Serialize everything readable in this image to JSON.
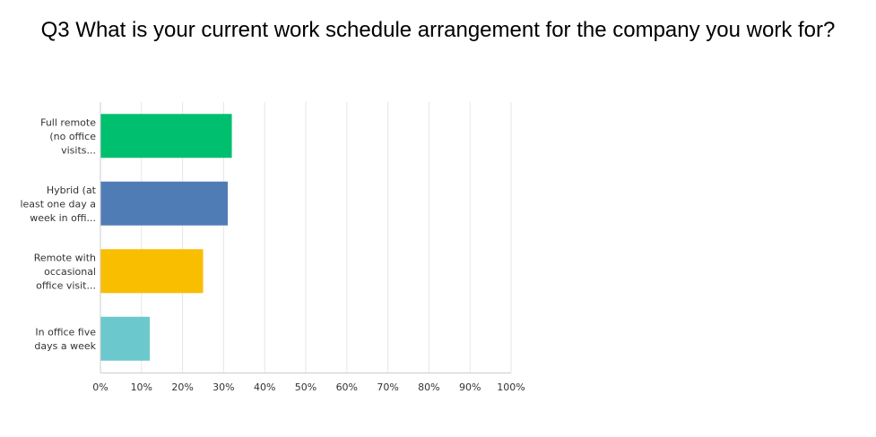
{
  "chart_data": {
    "type": "bar",
    "orientation": "horizontal",
    "title": "Q3 What is your current work schedule arrangement for the company you work for?",
    "categories": [
      [
        "Full remote",
        "(no office",
        "visits..."
      ],
      [
        "Hybrid (at",
        "least one day a",
        "week in offi..."
      ],
      [
        "Remote with",
        "occasional",
        "office visit..."
      ],
      [
        "In office five",
        "days a week"
      ]
    ],
    "values": [
      32,
      31,
      25,
      12
    ],
    "colors": [
      "#00bf6f",
      "#507cb6",
      "#f9be00",
      "#6bc8cd"
    ],
    "xlim": [
      0,
      100
    ],
    "x_ticks": [
      "0%",
      "10%",
      "20%",
      "30%",
      "40%",
      "50%",
      "60%",
      "70%",
      "80%",
      "90%",
      "100%"
    ],
    "grid": true,
    "xlabel": "",
    "ylabel": ""
  }
}
